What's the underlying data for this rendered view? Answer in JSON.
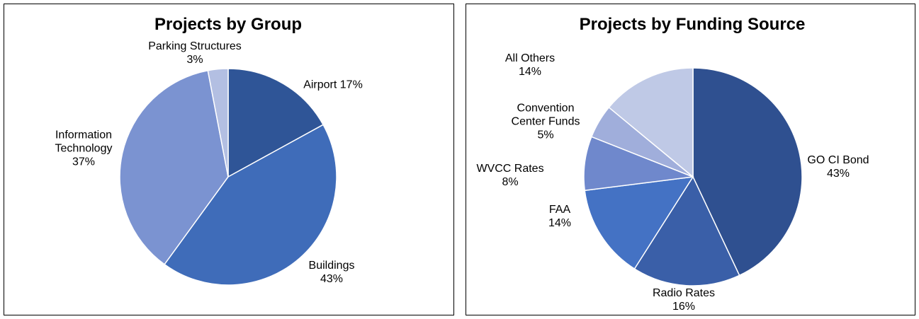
{
  "chart_data": [
    {
      "type": "pie",
      "title": "Projects by Group",
      "categories": [
        "Airport",
        "Buildings",
        "Information Technology",
        "Parking Structures"
      ],
      "values": [
        17,
        43,
        37,
        3
      ],
      "value_labels": [
        "17%",
        "43%",
        "37%",
        "3%"
      ],
      "colors": [
        "#2f5597",
        "#3f6cb9",
        "#7b93d1",
        "#b3bfe2"
      ]
    },
    {
      "type": "pie",
      "title": "Projects by Funding Source",
      "categories": [
        "GO CI Bond",
        "Radio Rates",
        "FAA",
        "WVCC Rates",
        "Convention Center Funds",
        "All Others"
      ],
      "values": [
        43,
        16,
        14,
        8,
        5,
        14
      ],
      "value_labels": [
        "43%",
        "16%",
        "14%",
        "8%",
        "5%",
        "14%"
      ],
      "colors": [
        "#2f5090",
        "#3a5fa8",
        "#4472c4",
        "#6f88cc",
        "#a0aedb",
        "#bfc9e6"
      ]
    }
  ]
}
